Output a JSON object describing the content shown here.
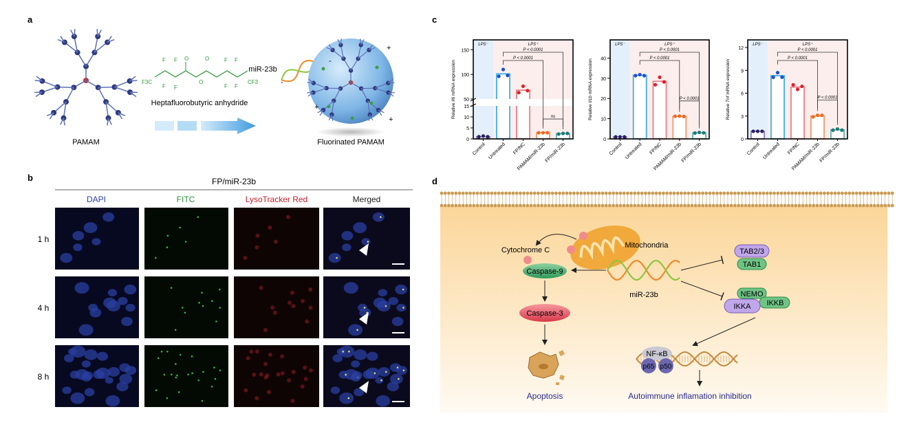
{
  "panels": {
    "a": {
      "label": "a",
      "pamam_label": "PAMAM",
      "reagent_label": "Heptafluorobutyric anhydride",
      "mirna_label": "miR-23b",
      "product_label": "Fluorinated PAMAM",
      "charges": [
        "-",
        "-",
        "+",
        "+",
        "+"
      ],
      "formula_atoms": [
        "F",
        "F",
        "F3C",
        "F",
        "F",
        "O",
        "O",
        "O",
        "F",
        "F",
        "F",
        "F",
        "CF3"
      ]
    },
    "b": {
      "label": "b",
      "group_title": "FP/miR-23b",
      "columns": [
        {
          "label": "DAPI",
          "color": "#2a3fa8"
        },
        {
          "label": "FITC",
          "color": "#2e8b3a"
        },
        {
          "label": "LysoTracker Red",
          "color": "#c0202a"
        },
        {
          "label": "Merged",
          "color": "#222222"
        }
      ],
      "rows": [
        "1 h",
        "4 h",
        "8 h"
      ]
    },
    "c": {
      "label": "c"
    },
    "d": {
      "label": "d",
      "nodes": {
        "cytochrome": "Cytochrome C",
        "mitochondria": "Mitochondria",
        "caspase9": "Caspase-9",
        "caspase3": "Caspase-3",
        "apoptosis": "Apoptosis",
        "mirna": "miR-23b",
        "tab23": "TAB2/3",
        "tab1": "TAB1",
        "nemo": "NEMO",
        "ikka": "IKKA",
        "ikkb": "IKKB",
        "nfkb": "NF-κB",
        "p65": "p65",
        "p50": "p50",
        "outcome": "Autoimmune inflamation inhibition"
      }
    }
  },
  "chart_data": [
    {
      "type": "bar",
      "ylabel_prefix": "Relative ",
      "ylabel_gene": "Il6",
      "ylabel_suffix": " mRNA expression",
      "categories": [
        "Control",
        "Untreated",
        "FP/NC",
        "PAMAM/miR-23b",
        "FP/miR-23b"
      ],
      "region_labels": [
        "LPS⁻",
        "LPS⁺"
      ],
      "axis_break": [
        15,
        50
      ],
      "ylim": [
        0,
        170
      ],
      "yticks": [
        0,
        5,
        10,
        15,
        50,
        100,
        150
      ],
      "values": [
        1.0,
        101,
        68,
        2.8,
        2.4
      ],
      "points": [
        [
          1.0,
          1.3,
          1.0
        ],
        [
          96,
          110,
          98
        ],
        [
          63,
          76,
          67
        ],
        [
          2.8,
          2.8,
          2.8
        ],
        [
          2.2,
          2.5,
          2.5
        ]
      ],
      "comparisons": [
        {
          "from": 1,
          "to": 3,
          "label": "P < 0.0001"
        },
        {
          "from": 1,
          "to": 4,
          "label": "P < 0.0001"
        },
        {
          "from": 3,
          "to": 4,
          "label": "ns"
        }
      ]
    },
    {
      "type": "bar",
      "ylabel_prefix": "Relative ",
      "ylabel_gene": "Il1b",
      "ylabel_suffix": " mRNA expression",
      "categories": [
        "Control",
        "Untreated",
        "FP/NC",
        "PAMAM/miR-23b",
        "FP/miR-23b"
      ],
      "region_labels": [
        "LPS⁻",
        "LPS⁺"
      ],
      "ylim": [
        0,
        49
      ],
      "yticks": [
        0,
        10,
        20,
        30,
        40
      ],
      "values": [
        1.0,
        31.5,
        28.5,
        11.2,
        3.0
      ],
      "points": [
        [
          1.0,
          1.0,
          1.0
        ],
        [
          31.3,
          31.8,
          31.3
        ],
        [
          26.8,
          30.5,
          28.2
        ],
        [
          11.2,
          11.3,
          11.1
        ],
        [
          2.9,
          3.2,
          3.0
        ]
      ],
      "comparisons": [
        {
          "from": 1,
          "to": 3,
          "label": "P < 0.0001"
        },
        {
          "from": 1,
          "to": 4,
          "label": "P < 0.0001"
        },
        {
          "from": 3,
          "to": 4,
          "label": "P < 0.0001"
        }
      ]
    },
    {
      "type": "bar",
      "ylabel_prefix": "Relative ",
      "ylabel_gene": "Tnf",
      "ylabel_suffix": " mRNA expression",
      "categories": [
        "Control",
        "Untreated",
        "FP/NC",
        "PAMAM/miR-23b",
        "FP/miR-23b"
      ],
      "region_labels": [
        "LPS⁻",
        "LPS⁺"
      ],
      "ylim": [
        0,
        13
      ],
      "yticks": [
        0,
        3,
        6,
        9,
        12
      ],
      "values": [
        1.0,
        8.3,
        6.8,
        3.0,
        1.2
      ],
      "points": [
        [
          1.0,
          1.0,
          1.0
        ],
        [
          8.1,
          8.7,
          8.1
        ],
        [
          7.1,
          6.5,
          6.9
        ],
        [
          2.9,
          3.1,
          3.1
        ],
        [
          1.15,
          1.3,
          1.15
        ]
      ],
      "comparisons": [
        {
          "from": 1,
          "to": 3,
          "label": "P < 0.0001"
        },
        {
          "from": 1,
          "to": 4,
          "label": "P < 0.0001"
        },
        {
          "from": 3,
          "to": 4,
          "label": "P < 0.0001"
        }
      ]
    }
  ],
  "colors": {
    "bar_borders": [
      "#8a7fc4",
      "#3ab0e6",
      "#ea7f86",
      "#f29a6a",
      "#58b3b3"
    ],
    "point_colors": [
      "#2b2060",
      "#1f4fd0",
      "#e0202a",
      "#f06a20",
      "#1f7a78"
    ],
    "lps_neg_bg": "#e3effb",
    "lps_pos_bg": "#fdeeee",
    "cytoplasm": "#fbd99a",
    "mirna_text": "#2a2a8a"
  }
}
